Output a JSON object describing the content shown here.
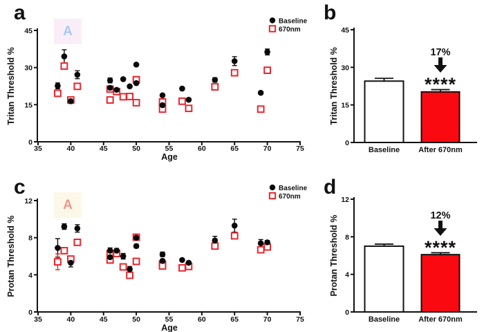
{
  "figure": {
    "panels": {
      "a": {
        "letter": "a",
        "watermark": {
          "text": "A",
          "bg": "#f9eef8",
          "color": "#a9c9f3"
        }
      },
      "b": {
        "letter": "b"
      },
      "c": {
        "letter": "c",
        "watermark": {
          "text": "A",
          "bg": "#fcf8e8",
          "color": "#f1948d"
        }
      },
      "d": {
        "letter": "d"
      }
    },
    "colors": {
      "baseline": "#0a0a0a",
      "treatment_marker": "#e8252c",
      "treatment_bar": "#fa0a10"
    }
  },
  "chart_data": [
    {
      "id": "a",
      "type": "scatter",
      "xlabel": "Age",
      "ylabel": "Tritan Threshold %",
      "xlim": [
        35,
        75
      ],
      "ylim": [
        0,
        45
      ],
      "xticks": [
        35,
        40,
        45,
        50,
        55,
        60,
        65,
        70,
        75
      ],
      "yticks": [
        0,
        15,
        30,
        45
      ],
      "grid": false,
      "legend": {
        "position": "top-right",
        "entries": [
          {
            "label": "Baseline",
            "marker": "filled-circle",
            "color": "#0a0a0a"
          },
          {
            "label": "670nm",
            "marker": "open-square",
            "color": "#e8252c"
          }
        ]
      },
      "series": [
        {
          "name": "Baseline",
          "marker": "filled-circle",
          "color": "#0a0a0a",
          "points": [
            [
              38,
              22.6,
              1.2
            ],
            [
              39,
              34.5,
              2.7
            ],
            [
              40,
              16.4,
              0.9
            ],
            [
              41,
              27.1,
              1.6
            ],
            [
              46,
              24.8,
              1.0
            ],
            [
              46,
              21.8,
              0.6
            ],
            [
              47,
              21.0,
              0.6
            ],
            [
              48,
              25.3,
              0.5
            ],
            [
              49,
              22.4,
              0.5
            ],
            [
              50,
              31.2,
              0.4
            ],
            [
              50,
              23.7,
              0.6
            ],
            [
              54,
              18.8,
              0.4
            ],
            [
              54,
              14.8,
              0.4
            ],
            [
              57,
              21.5,
              0
            ],
            [
              58,
              17.0,
              0.4
            ],
            [
              62,
              25.0,
              0.9
            ],
            [
              65,
              32.6,
              1.8
            ],
            [
              69,
              19.8,
              0
            ],
            [
              70,
              36.3,
              1.2
            ]
          ]
        },
        {
          "name": "670nm",
          "marker": "open-square",
          "color": "#e8252c",
          "points": [
            [
              38,
              19.6,
              0
            ],
            [
              39,
              30.6,
              0
            ],
            [
              40,
              16.9,
              0
            ],
            [
              41,
              22.4,
              0.8
            ],
            [
              46,
              21.3,
              0
            ],
            [
              46,
              16.9,
              0
            ],
            [
              47,
              20.3,
              0
            ],
            [
              48,
              18.2,
              0
            ],
            [
              49,
              18.3,
              0
            ],
            [
              50,
              25.1,
              0
            ],
            [
              50,
              15.8,
              0
            ],
            [
              54,
              16.1,
              0
            ],
            [
              54,
              13.2,
              0
            ],
            [
              57,
              16.4,
              0
            ],
            [
              58,
              13.5,
              0
            ],
            [
              62,
              22.2,
              0
            ],
            [
              65,
              27.9,
              0
            ],
            [
              69,
              13.2,
              0
            ],
            [
              70,
              28.9,
              0
            ]
          ]
        }
      ]
    },
    {
      "id": "b",
      "type": "bar",
      "ylabel": "Tritan Threshold %",
      "ylim": [
        0,
        45
      ],
      "yticks": [
        0,
        15,
        30,
        45
      ],
      "categories": [
        "Baseline",
        "After 670nm"
      ],
      "values": [
        24.5,
        20.2
      ],
      "errors": [
        1.1,
        0.9
      ],
      "bar_colors": [
        "#ffffff",
        "#fa0a10"
      ],
      "annotations": {
        "percent_change": "17%",
        "significance": "****",
        "arrow": "down"
      }
    },
    {
      "id": "c",
      "type": "scatter",
      "xlabel": "Age",
      "ylabel": "Protan Threshold %",
      "xlim": [
        35,
        75
      ],
      "ylim": [
        0,
        12
      ],
      "xticks": [
        35,
        40,
        45,
        50,
        55,
        60,
        65,
        70,
        75
      ],
      "yticks": [
        0,
        4,
        8,
        12
      ],
      "grid": false,
      "legend": {
        "position": "top-right",
        "entries": [
          {
            "label": "Baseline",
            "marker": "filled-circle",
            "color": "#0a0a0a"
          },
          {
            "label": "670nm",
            "marker": "open-square",
            "color": "#e8252c"
          }
        ]
      },
      "series": [
        {
          "name": "Baseline",
          "marker": "filled-circle",
          "color": "#0a0a0a",
          "points": [
            [
              38,
              6.9,
              1.0
            ],
            [
              39,
              9.2,
              0.3
            ],
            [
              40,
              5.3,
              0.45
            ],
            [
              41,
              9.0,
              0.4
            ],
            [
              46,
              6.6,
              0.3
            ],
            [
              46,
              5.9,
              0.35
            ],
            [
              47,
              6.6,
              0.25
            ],
            [
              48,
              6.0,
              0.3
            ],
            [
              49,
              4.6,
              0.3
            ],
            [
              50,
              8.0,
              0.25
            ],
            [
              50,
              7.1,
              0.2
            ],
            [
              54,
              6.2,
              0.25
            ],
            [
              54,
              5.5,
              0.2
            ],
            [
              57,
              5.6,
              0
            ],
            [
              58,
              5.3,
              0.15
            ],
            [
              62,
              7.7,
              0.45
            ],
            [
              65,
              9.3,
              0.7
            ],
            [
              69,
              7.4,
              0.4
            ],
            [
              70,
              7.5,
              0.2
            ]
          ]
        },
        {
          "name": "670nm",
          "marker": "open-square",
          "color": "#e8252c",
          "points": [
            [
              38,
              5.4,
              0.85
            ],
            [
              39,
              6.6,
              0.2
            ],
            [
              40,
              5.7,
              0.3
            ],
            [
              41,
              7.5,
              0
            ],
            [
              46,
              6.3,
              0.3
            ],
            [
              46,
              5.6,
              0.35
            ],
            [
              47,
              6.3,
              0.2
            ],
            [
              48,
              4.85,
              0.2
            ],
            [
              49,
              3.95,
              0.25
            ],
            [
              50,
              8.05,
              0.3
            ],
            [
              50,
              5.45,
              0.3
            ],
            [
              54,
              5.15,
              0.35
            ],
            [
              54,
              4.95,
              0
            ],
            [
              57,
              4.75,
              0.2
            ],
            [
              58,
              4.9,
              0.15
            ],
            [
              62,
              7.1,
              0.2
            ],
            [
              65,
              8.2,
              0.3
            ],
            [
              69,
              6.7,
              0.2
            ],
            [
              70,
              7.0,
              0.2
            ]
          ]
        }
      ]
    },
    {
      "id": "d",
      "type": "bar",
      "ylabel": "Protan Threshold %",
      "ylim": [
        0,
        12
      ],
      "yticks": [
        0,
        4,
        8,
        12
      ],
      "categories": [
        "Baseline",
        "After 670nm"
      ],
      "values": [
        7.0,
        6.1
      ],
      "errors": [
        0.22,
        0.2
      ],
      "bar_colors": [
        "#ffffff",
        "#fa0a10"
      ],
      "annotations": {
        "percent_change": "12%",
        "significance": "****",
        "arrow": "down"
      }
    }
  ]
}
